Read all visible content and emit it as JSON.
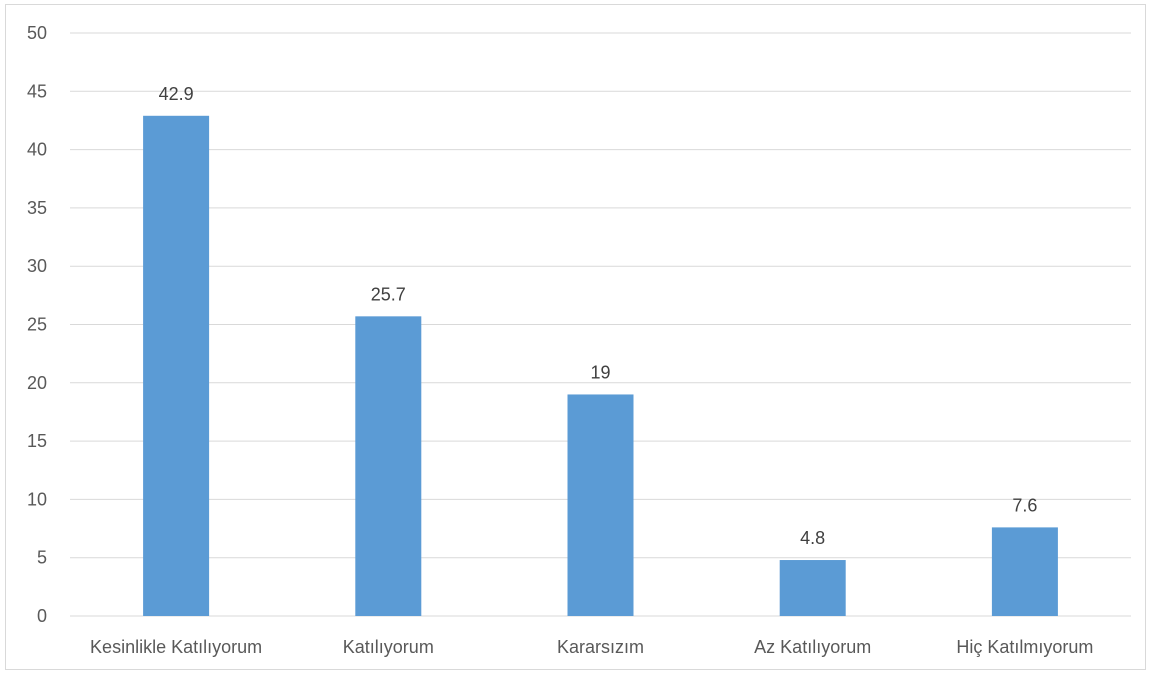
{
  "chart_data": {
    "type": "bar",
    "categories": [
      "Kesinlikle Katılıyorum",
      "Katılıyorum",
      "Kararsızım",
      "Az Katılıyorum",
      "Hiç Katılmıyorum"
    ],
    "values": [
      42.9,
      25.7,
      19,
      4.8,
      7.6
    ],
    "data_labels": [
      "42.9",
      "25.7",
      "19",
      "4.8",
      "7.6"
    ],
    "title": "",
    "xlabel": "",
    "ylabel": "",
    "ylim": [
      0,
      50
    ],
    "yticks": [
      0,
      5,
      10,
      15,
      20,
      25,
      30,
      35,
      40,
      45,
      50
    ],
    "grid": true,
    "legend": "none",
    "colors": {
      "bar": "#5b9bd5",
      "grid": "#d9d9d9",
      "tick_text": "#595959",
      "label_text": "#404040"
    }
  }
}
